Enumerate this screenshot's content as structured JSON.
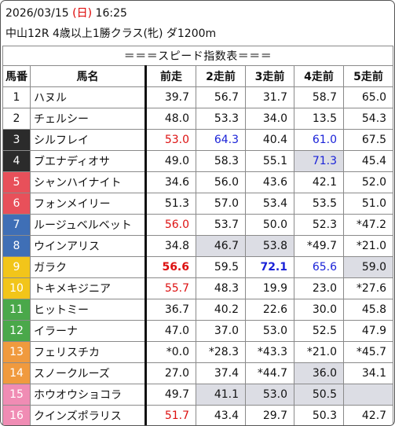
{
  "header": {
    "date": "2026/03/15",
    "weekday": "(日)",
    "time": "16:25",
    "race": "中山12R 4歳以上1勝クラス(牝) ダ1200m"
  },
  "table": {
    "title": "＝＝＝スピード指数表＝＝＝",
    "columns": [
      "馬番",
      "馬名",
      "前走",
      "2走前",
      "3走前",
      "4走前",
      "5走前"
    ],
    "rows": [
      {
        "num": "1",
        "color": "#ffffff",
        "name": "ハヌル",
        "v": [
          "39.7",
          "56.7",
          "31.7",
          "58.7",
          "65.0"
        ]
      },
      {
        "num": "2",
        "color": "#ffffff",
        "name": "チェルシー",
        "v": [
          "48.0",
          "53.3",
          "34.0",
          "13.5",
          "54.3"
        ]
      },
      {
        "num": "3",
        "color": "#2b2b2b",
        "name": "シルフレイ",
        "v": [
          "53.0",
          "64.3",
          "40.4",
          "61.0",
          "67.5"
        ]
      },
      {
        "num": "4",
        "color": "#2b2b2b",
        "name": "ブエナディオサ",
        "v": [
          "49.0",
          "58.3",
          "55.1",
          "71.3",
          "45.4"
        ]
      },
      {
        "num": "5",
        "color": "#e8505a",
        "name": "シャンハイナイト",
        "v": [
          "34.6",
          "56.0",
          "43.6",
          "42.1",
          "52.0"
        ]
      },
      {
        "num": "6",
        "color": "#e8505a",
        "name": "フォンメイリー",
        "v": [
          "51.3",
          "57.0",
          "53.4",
          "53.5",
          "51.0"
        ]
      },
      {
        "num": "7",
        "color": "#3f6fb6",
        "name": "ルージュベルベット",
        "v": [
          "56.0",
          "53.7",
          "50.0",
          "52.3",
          "*47.2"
        ]
      },
      {
        "num": "8",
        "color": "#3f6fb6",
        "name": "ウインアリス",
        "v": [
          "34.8",
          "46.7",
          "53.8",
          "*49.7",
          "*21.0"
        ]
      },
      {
        "num": "9",
        "color": "#f2c51a",
        "name": "ガラク",
        "v": [
          "56.6",
          "59.5",
          "72.1",
          "65.6",
          "59.0"
        ]
      },
      {
        "num": "10",
        "color": "#f2c51a",
        "name": "トキメキジニア",
        "v": [
          "55.7",
          "48.3",
          "19.9",
          "23.0",
          "*27.6"
        ]
      },
      {
        "num": "11",
        "color": "#4aa84a",
        "name": "ヒットミー",
        "v": [
          "36.7",
          "40.2",
          "22.6",
          "30.0",
          "45.8"
        ]
      },
      {
        "num": "12",
        "color": "#4aa84a",
        "name": "イラーナ",
        "v": [
          "47.0",
          "37.0",
          "53.0",
          "52.5",
          "47.9"
        ]
      },
      {
        "num": "13",
        "color": "#f09a3e",
        "name": "フェリスチカ",
        "v": [
          "*0.0",
          "*28.3",
          "*43.3",
          "*21.0",
          "*45.7"
        ]
      },
      {
        "num": "14",
        "color": "#f09a3e",
        "name": "スノークルーズ",
        "v": [
          "27.0",
          "37.4",
          "*44.7",
          "36.0",
          "34.1"
        ]
      },
      {
        "num": "15",
        "color": "#f08cb4",
        "name": "ホウオウショコラ",
        "v": [
          "49.7",
          "41.1",
          "53.0",
          "50.5",
          ""
        ]
      },
      {
        "num": "16",
        "color": "#f08cb4",
        "name": "クインズポラリス",
        "v": [
          "51.7",
          "43.4",
          "29.7",
          "50.3",
          "42.7"
        ]
      }
    ]
  }
}
